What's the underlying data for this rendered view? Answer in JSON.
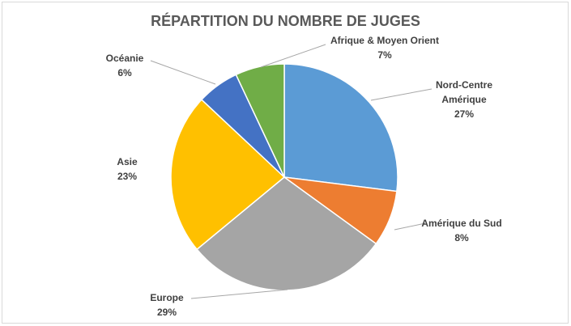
{
  "chart_data": {
    "type": "pie",
    "title": "RÉPARTITION DU NOMBRE DE JUGES",
    "categories": [
      "Nord-Centre Amérique",
      "Amérique du Sud",
      "Europe",
      "Asie",
      "Océanie",
      "Afrique & Moyen Orient"
    ],
    "values": [
      27,
      8,
      29,
      23,
      6,
      7
    ],
    "value_labels": [
      "27%",
      "8%",
      "29%",
      "23%",
      "6%",
      "7%"
    ],
    "colors": [
      "#5b9bd5",
      "#ed7d31",
      "#a5a5a5",
      "#ffc000",
      "#4472c4",
      "#70ad47"
    ]
  }
}
